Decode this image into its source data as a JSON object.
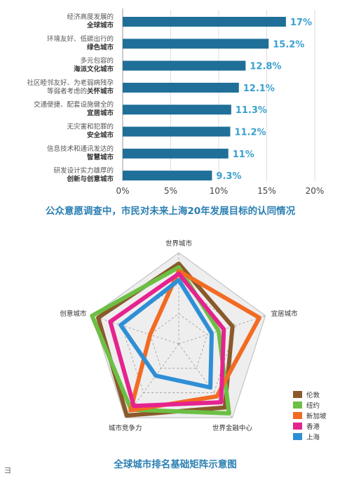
{
  "chart_data": [
    {
      "type": "bar",
      "orientation": "horizontal",
      "title": "公众意愿调查中，市民对未来上海20年发展目标的认同情况",
      "categories": [
        {
          "line1": "经济高度发展的",
          "line2_prefix": "",
          "line2_bold": "全球城市"
        },
        {
          "line1": "环境友好、低碳出行的",
          "line2_prefix": "",
          "line2_bold": "绿色城市"
        },
        {
          "line1": "多元包容的",
          "line2_prefix": "",
          "line2_bold": "海派文化城市"
        },
        {
          "line1": "社区睦邻友好、为老弱病残孕",
          "line2_prefix": "等弱者考虑的",
          "line2_bold": "关怀城市"
        },
        {
          "line1": "交通便捷、配套设施健全的",
          "line2_prefix": "",
          "line2_bold": "宜居城市"
        },
        {
          "line1": "无灾害和犯罪的",
          "line2_prefix": "",
          "line2_bold": "安全城市"
        },
        {
          "line1": "信息技术和通讯发达的",
          "line2_prefix": "",
          "line2_bold": "智慧城市"
        },
        {
          "line1": "研发设计实力雄厚的",
          "line2_prefix": "",
          "line2_bold": "创新与创意城市"
        }
      ],
      "values": [
        17,
        15.2,
        12.8,
        12.1,
        11.3,
        11.2,
        11,
        9.3
      ],
      "value_labels": [
        "17%",
        "15.2%",
        "12.8%",
        "12.1%",
        "11.3%",
        "11.2%",
        "11%",
        "9.3%"
      ],
      "xlim": [
        0,
        20
      ],
      "xticks": [
        "0%",
        "5%",
        "10%",
        "15%",
        "20%"
      ],
      "grid": true,
      "bar_color": "#1f6f99",
      "label_color": "#3aa0cf"
    },
    {
      "type": "radar",
      "title": "全球城市排名基础矩阵示意图",
      "axes": [
        "世界城市",
        "宜居城市",
        "世界金融中心",
        "城市竞争力",
        "创意城市"
      ],
      "max": 10,
      "series": [
        {
          "name": "伦敦",
          "color": "#8b5a2b",
          "values": [
            8.8,
            6.2,
            8.6,
            9.7,
            9.3
          ]
        },
        {
          "name": "纽约",
          "color": "#6cbf44",
          "values": [
            8.4,
            4.6,
            9.4,
            8.9,
            10
          ]
        },
        {
          "name": "新加坡",
          "color": "#f26b22",
          "values": [
            8.0,
            9.3,
            7.1,
            9.0,
            3.3
          ]
        },
        {
          "name": "香港",
          "color": "#e5238e",
          "values": [
            7.7,
            5.2,
            7.9,
            8.4,
            7.9
          ]
        },
        {
          "name": "上海",
          "color": "#2f8fd6",
          "values": [
            7.0,
            3.8,
            5.9,
            4.3,
            6.7
          ]
        }
      ],
      "legend_position": "bottom-right",
      "web_fill": "#eeeeee",
      "web_stroke": "#999999"
    }
  ],
  "page_mark": "彐"
}
